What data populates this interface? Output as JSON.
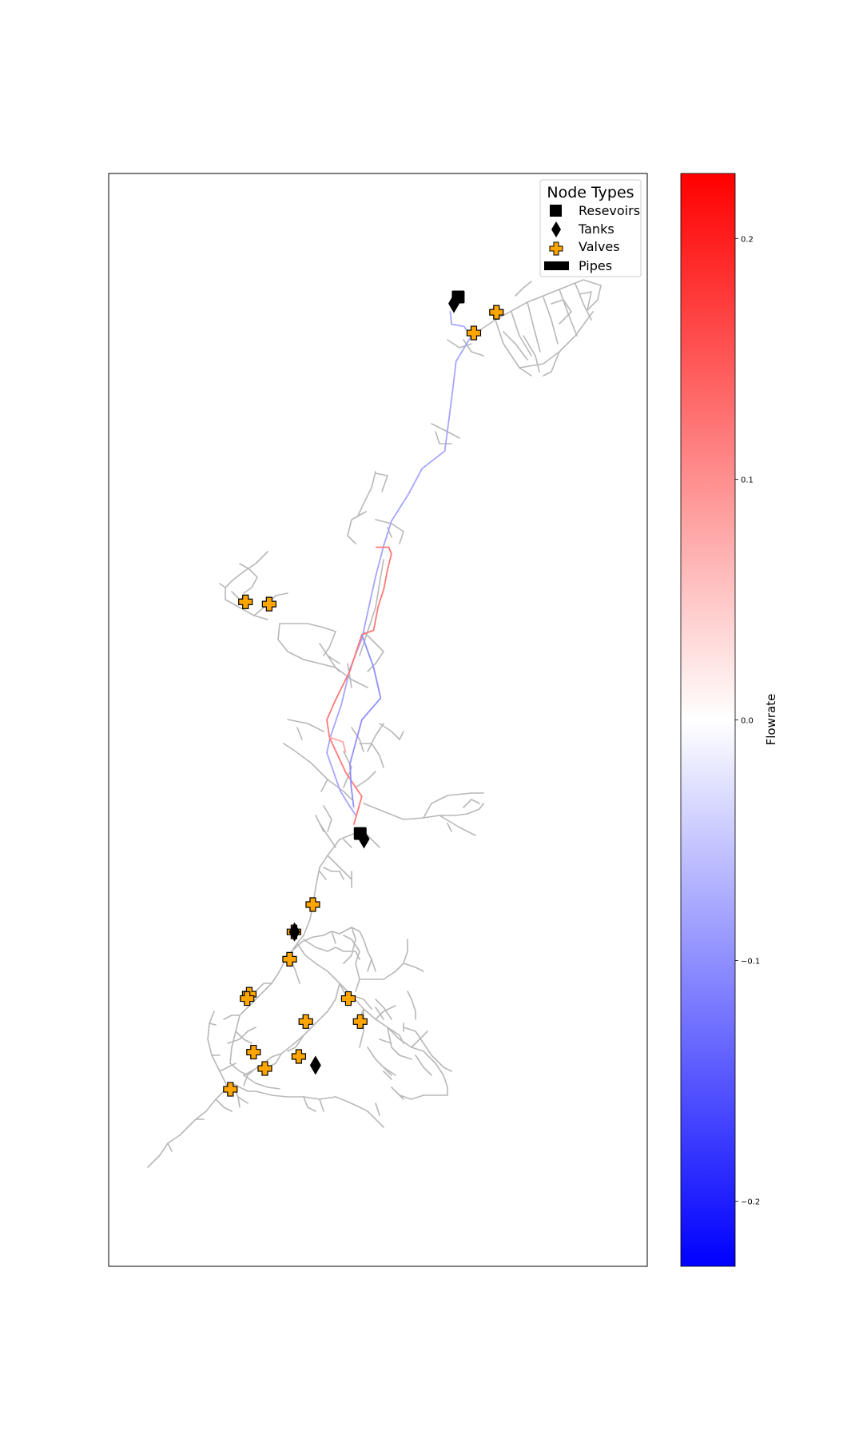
{
  "chart_data": {
    "type": "network",
    "legend": {
      "title": "Node Types",
      "placement": "top-right",
      "entries": [
        {
          "label": "Resevoirs",
          "marker": "square",
          "color": "#000000"
        },
        {
          "label": "Tanks",
          "marker": "diamond",
          "color": "#000000"
        },
        {
          "label": "Valves",
          "marker": "plus",
          "color": "#ffa500"
        },
        {
          "label": "Pipes",
          "marker": "rect",
          "color": "#000000"
        }
      ]
    },
    "colorbar": {
      "label": "Flowrate",
      "colormap": "bwr",
      "range": [
        -0.227,
        0.227
      ],
      "ticks": [
        0.2,
        0.1,
        0.0,
        -0.1,
        -0.2
      ],
      "tick_labels": [
        "0.2",
        "0.1",
        "0.0",
        "−0.1",
        "−0.2"
      ],
      "colors": {
        "low": "#0000ff",
        "mid": "#ffffff",
        "high": "#ff0000"
      }
    },
    "grid": false,
    "axes_visible": false,
    "nodes": {
      "reservoirs": [
        {
          "x": 0.649,
          "y": 0.887
        },
        {
          "x": 0.467,
          "y": 0.396
        }
      ],
      "tanks": [
        {
          "x": 0.641,
          "y": 0.881
        },
        {
          "x": 0.474,
          "y": 0.391
        },
        {
          "x": 0.345,
          "y": 0.306
        },
        {
          "x": 0.384,
          "y": 0.184
        }
      ],
      "valves": [
        {
          "x": 0.72,
          "y": 0.873
        },
        {
          "x": 0.678,
          "y": 0.854
        },
        {
          "x": 0.254,
          "y": 0.608
        },
        {
          "x": 0.298,
          "y": 0.606
        },
        {
          "x": 0.379,
          "y": 0.331
        },
        {
          "x": 0.344,
          "y": 0.306
        },
        {
          "x": 0.336,
          "y": 0.281
        },
        {
          "x": 0.261,
          "y": 0.249
        },
        {
          "x": 0.257,
          "y": 0.245
        },
        {
          "x": 0.445,
          "y": 0.245
        },
        {
          "x": 0.366,
          "y": 0.224
        },
        {
          "x": 0.467,
          "y": 0.224
        },
        {
          "x": 0.269,
          "y": 0.196
        },
        {
          "x": 0.353,
          "y": 0.192
        },
        {
          "x": 0.29,
          "y": 0.181
        },
        {
          "x": 0.226,
          "y": 0.162
        }
      ]
    },
    "pipes": {
      "flow_path": [
        {
          "points": [
            [
              0.634,
              0.874
            ],
            [
              0.637,
              0.862
            ],
            [
              0.66,
              0.86
            ],
            [
              0.673,
              0.851
            ],
            [
              0.645,
              0.828
            ],
            [
              0.639,
              0.803
            ],
            [
              0.632,
              0.776
            ],
            [
              0.624,
              0.746
            ],
            [
              0.582,
              0.73
            ],
            [
              0.556,
              0.706
            ],
            [
              0.525,
              0.682
            ],
            [
              0.511,
              0.66
            ],
            [
              0.496,
              0.632
            ],
            [
              0.482,
              0.601
            ],
            [
              0.47,
              0.574
            ],
            [
              0.448,
              0.547
            ],
            [
              0.432,
              0.514
            ],
            [
              0.412,
              0.485
            ],
            [
              0.405,
              0.47
            ],
            [
              0.43,
              0.435
            ],
            [
              0.445,
              0.423
            ],
            [
              0.46,
              0.412
            ]
          ],
          "flow": -0.08
        },
        {
          "points": [
            [
              0.496,
              0.658
            ],
            [
              0.52,
              0.658
            ],
            [
              0.525,
              0.652
            ],
            [
              0.518,
              0.638
            ],
            [
              0.511,
              0.62
            ],
            [
              0.5,
              0.603
            ],
            [
              0.492,
              0.582
            ],
            [
              0.47,
              0.578
            ],
            [
              0.448,
              0.545
            ],
            [
              0.42,
              0.517
            ],
            [
              0.405,
              0.5
            ],
            [
              0.41,
              0.484
            ],
            [
              0.44,
              0.452
            ],
            [
              0.47,
              0.43
            ],
            [
              0.455,
              0.404
            ]
          ],
          "flow": 0.12
        },
        {
          "points": [
            [
              0.47,
              0.578
            ],
            [
              0.492,
              0.548
            ],
            [
              0.505,
              0.52
            ],
            [
              0.47,
              0.5
            ],
            [
              0.448,
              0.46
            ],
            [
              0.45,
              0.44
            ],
            [
              0.455,
              0.42
            ]
          ],
          "flow": -0.1
        },
        {
          "points": [
            [
              0.41,
              0.484
            ],
            [
              0.435,
              0.48
            ],
            [
              0.44,
              0.47
            ]
          ],
          "flow": 0.08
        }
      ]
    }
  }
}
